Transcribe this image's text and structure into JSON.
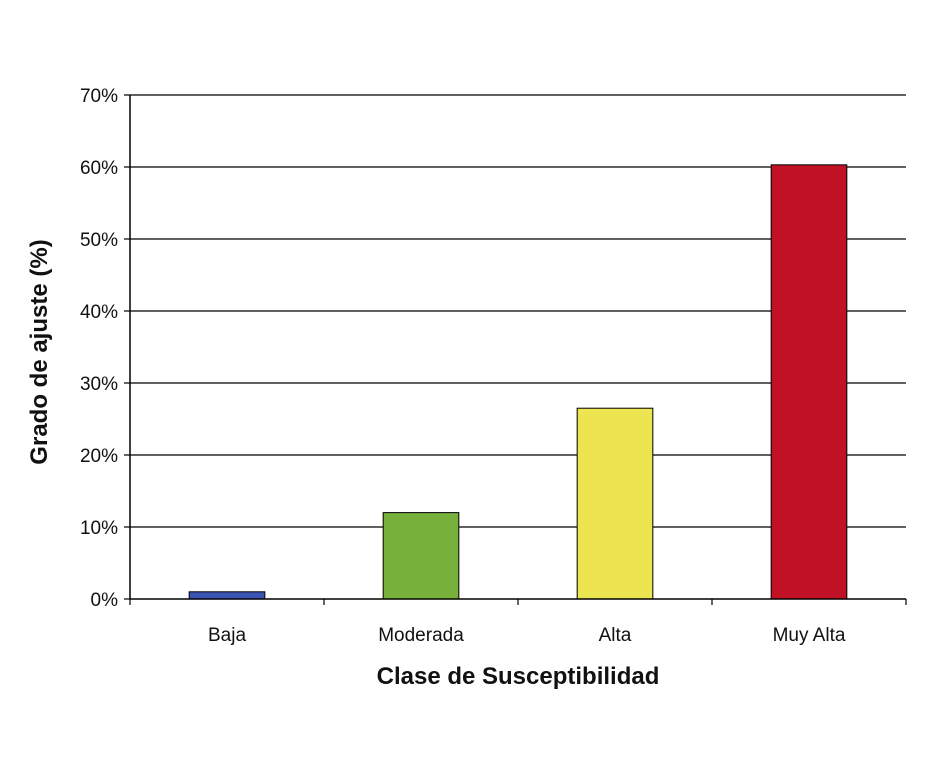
{
  "chart_data": {
    "type": "bar",
    "title": "",
    "xlabel": "Clase de Susceptibilidad",
    "ylabel": "Grado de ajuste (%)",
    "categories": [
      "Baja",
      "Moderada",
      "Alta",
      "Muy Alta"
    ],
    "values": [
      1,
      12,
      26.5,
      60.3
    ],
    "colors": [
      "#3a55b4",
      "#77b03a",
      "#ede452",
      "#c01224"
    ],
    "ylim": [
      0,
      70
    ],
    "yticks": [
      0,
      10,
      20,
      30,
      40,
      50,
      60,
      70
    ],
    "ytick_labels": [
      "0%",
      "10%",
      "20%",
      "30%",
      "40%",
      "50%",
      "60%",
      "70%"
    ],
    "grid": true,
    "legend": "none"
  }
}
